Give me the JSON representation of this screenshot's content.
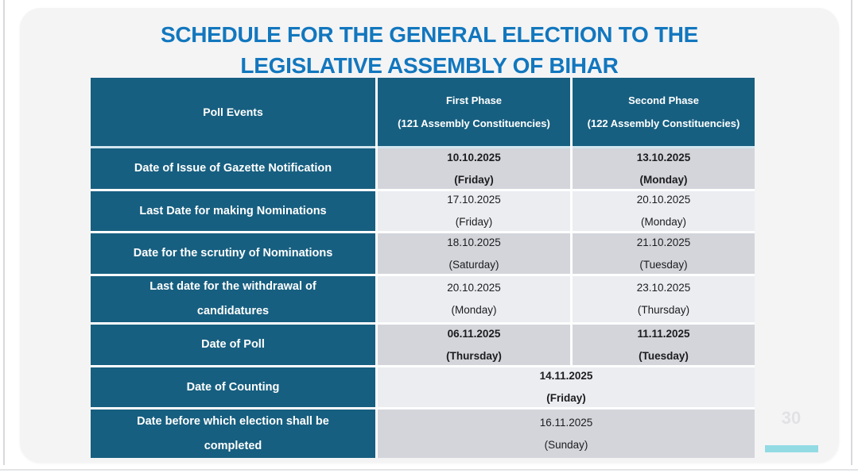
{
  "title": {
    "text": "SCHEDULE FOR THE GENERAL ELECTION TO THE\nLEGISLATIVE ASSEMBLY OF BIHAR"
  },
  "table": {
    "header": {
      "poll_events": "Poll Events",
      "first_phase": "First Phase",
      "first_phase_sub": "(121 Assembly Constituencies)",
      "second_phase": "Second Phase",
      "second_phase_sub": "(122 Assembly Constituencies)"
    },
    "rows": [
      {
        "event": "Date of Issue of Gazette Notification",
        "first_date": "10.10.2025",
        "first_day": "(Friday)",
        "second_date": "13.10.2025",
        "second_day": "(Monday)"
      },
      {
        "event": "Last Date for making Nominations",
        "first_date": "17.10.2025",
        "first_day": "(Friday)",
        "second_date": "20.10.2025",
        "second_day": "(Monday)"
      },
      {
        "event": "Date for the scrutiny of Nominations",
        "first_date": "18.10.2025",
        "first_day": "(Saturday)",
        "second_date": "21.10.2025",
        "second_day": "(Tuesday)"
      },
      {
        "event": "Last date for the withdrawal of\ncandidatures",
        "first_date": "20.10.2025",
        "first_day": "(Monday)",
        "second_date": "23.10.2025",
        "second_day": "(Thursday)"
      },
      {
        "event": "Date of Poll",
        "first_date": "06.11.2025",
        "first_day": "(Thursday)",
        "second_date": "11.11.2025",
        "second_day": "(Tuesday)"
      },
      {
        "event": "Date of Counting",
        "merged_date": "14.11.2025",
        "merged_day": "(Friday)"
      },
      {
        "event": "Date before which election shall be\ncompleted",
        "merged_date": "16.11.2025",
        "merged_day": "(Sunday)"
      }
    ]
  },
  "page_number": "30",
  "colors": {
    "title_blue": "#1277be",
    "header_teal": "#175f80",
    "row_dark": "#d3d5db",
    "row_light": "#ebedf1",
    "accent_cyan": "#93dbe4",
    "slide_bg": "#f4f4f5"
  }
}
